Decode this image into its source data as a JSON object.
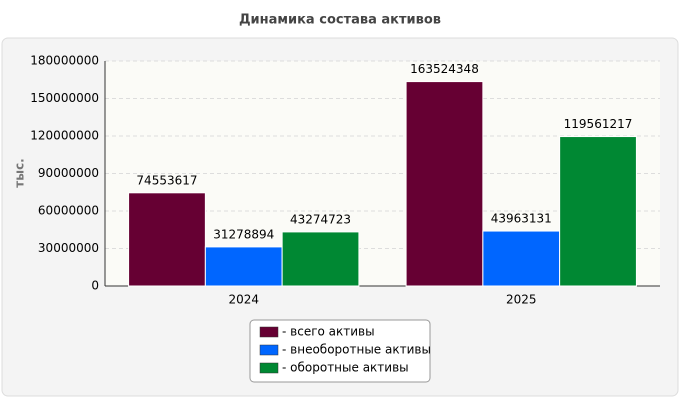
{
  "chart_data": {
    "type": "bar",
    "title": "Динамика состава активов",
    "y_label": "тыс.",
    "categories": [
      "2024",
      "2025"
    ],
    "series": [
      {
        "name": "- всего активы",
        "color": "#660033",
        "values": [
          74553617,
          163524348
        ]
      },
      {
        "name": "- внеоборотные активы",
        "color": "#0066ff",
        "values": [
          31278894,
          43963131
        ]
      },
      {
        "name": "- оборотные активы",
        "color": "#008833",
        "values": [
          43274723,
          119561217
        ]
      }
    ],
    "ylim": [
      0,
      180000000
    ],
    "yticks": [
      0,
      30000000,
      60000000,
      90000000,
      120000000,
      150000000,
      180000000
    ],
    "grid": true
  }
}
